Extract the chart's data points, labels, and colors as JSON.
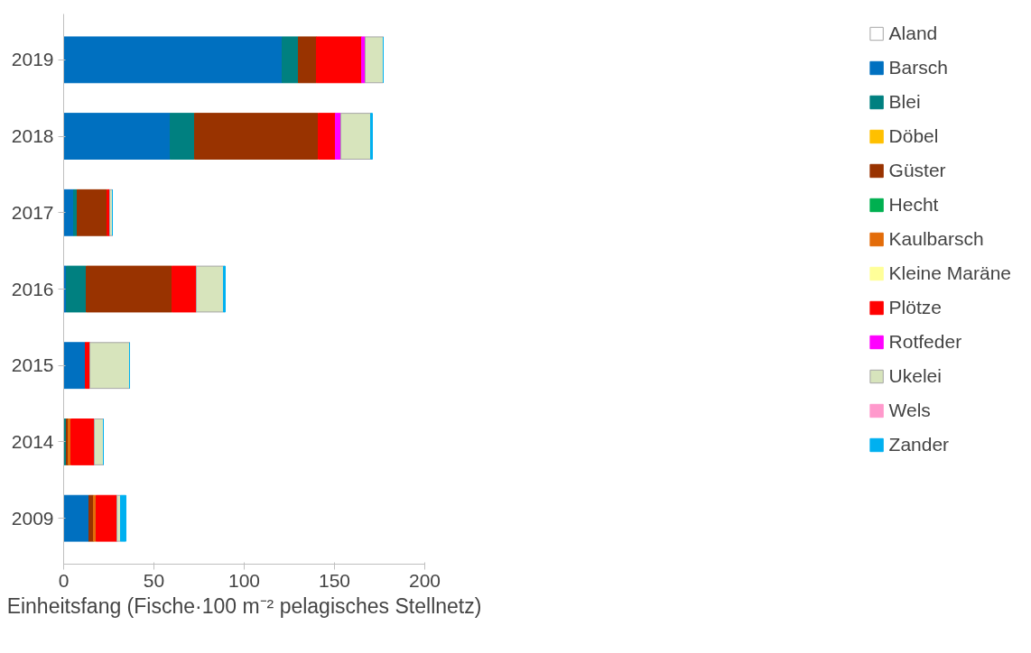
{
  "chart_data": {
    "type": "bar",
    "orientation": "horizontal",
    "stacked": true,
    "xlabel": "Einheitsfang (Fische·100 m⁻² pelagisches Stellnetz)",
    "categories": [
      "2019",
      "2018",
      "2017",
      "2016",
      "2015",
      "2014",
      "2009"
    ],
    "xlim": [
      0,
      200
    ],
    "xticks": [
      0,
      50,
      100,
      150,
      200
    ],
    "grid": false,
    "legend": "right",
    "series": [
      {
        "name": "Aland",
        "color": "#ffffff",
        "values": [
          0,
          0,
          0,
          0,
          0,
          0,
          0
        ]
      },
      {
        "name": "Barsch",
        "color": "#0070c0",
        "values": [
          121,
          59,
          5.5,
          1.5,
          12,
          0,
          14
        ]
      },
      {
        "name": "Blei",
        "color": "#008080",
        "values": [
          9,
          13.5,
          2,
          11,
          0,
          1.5,
          0
        ]
      },
      {
        "name": "Döbel",
        "color": "#ffc000",
        "values": [
          0,
          0,
          0,
          0,
          0,
          0,
          0
        ]
      },
      {
        "name": "Güster",
        "color": "#993300",
        "values": [
          10,
          68.5,
          16.5,
          47.5,
          0,
          1,
          2.5
        ]
      },
      {
        "name": "Hecht",
        "color": "#00b050",
        "values": [
          0,
          0,
          0,
          0,
          0,
          0,
          0
        ]
      },
      {
        "name": "Kaulbarsch",
        "color": "#e36c09",
        "values": [
          0,
          0,
          0,
          0,
          0,
          1.5,
          1.5
        ]
      },
      {
        "name": "Kleine Maräne",
        "color": "#ffff99",
        "values": [
          0,
          0,
          0,
          0,
          0,
          0,
          0
        ]
      },
      {
        "name": "Plötze",
        "color": "#ff0000",
        "values": [
          25,
          9.5,
          1.5,
          13.5,
          2.5,
          13,
          11.5
        ]
      },
      {
        "name": "Rotfeder",
        "color": "#ff00ff",
        "values": [
          2,
          3,
          0,
          0,
          0,
          0,
          0
        ]
      },
      {
        "name": "Ukelei",
        "color": "#d7e4bc",
        "values": [
          10,
          16.5,
          1.5,
          15,
          22,
          5,
          2
        ]
      },
      {
        "name": "Wels",
        "color": "#ff99cc",
        "values": [
          0,
          0,
          0,
          0,
          0,
          0,
          0
        ]
      },
      {
        "name": "Zander",
        "color": "#00b0f0",
        "values": [
          0,
          1,
          0,
          1,
          0,
          0,
          3
        ]
      }
    ]
  }
}
